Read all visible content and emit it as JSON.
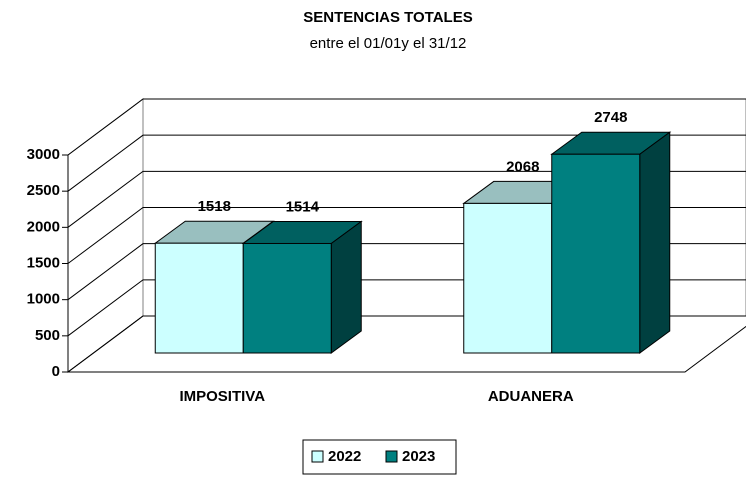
{
  "chart_data": {
    "type": "bar3d",
    "title": "SENTENCIAS TOTALES",
    "subtitle": "entre el 01/01y el 31/12",
    "categories": [
      "IMPOSITIVA",
      "ADUANERA"
    ],
    "series": [
      {
        "name": "2022",
        "color": "#ccffff",
        "values": [
          1518,
          2068
        ]
      },
      {
        "name": "2023",
        "color": "#008080",
        "values": [
          1514,
          2748
        ]
      }
    ],
    "ylim": [
      0,
      3000
    ],
    "yticks": [
      0,
      500,
      1000,
      1500,
      2000,
      2500,
      3000
    ],
    "grid": true,
    "legend": "bottom"
  }
}
